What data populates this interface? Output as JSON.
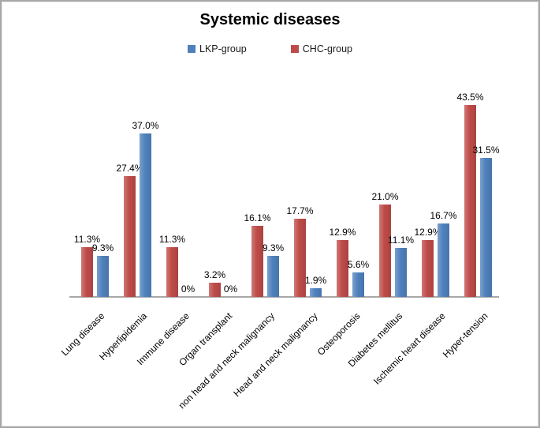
{
  "title": "Systemic diseases",
  "legend": [
    {
      "key": "lkp",
      "label": "LKP-group",
      "color": "#4F81BD"
    },
    {
      "key": "chc",
      "label": "CHC-group",
      "color": "#BE4B48"
    }
  ],
  "chart_data": {
    "type": "bar",
    "title": "Systemic diseases",
    "categories": [
      "Lung disease",
      "Hyperlipidemia",
      "Immune disease",
      "Organ transplant",
      "non head and neck malignancy",
      "Head and neck malignancy",
      "Osteoporosis",
      "Diabetes mellitus",
      "Ischemic heart disease",
      "Hyper-tension"
    ],
    "series": [
      {
        "name": "CHC-group",
        "key": "chc",
        "color": "#BE4B48",
        "values": [
          11.3,
          27.4,
          11.3,
          3.2,
          16.1,
          17.7,
          12.9,
          21.0,
          12.9,
          43.5
        ],
        "labels": [
          "11.3%",
          "27.4%",
          "11.3%",
          "3.2%",
          "16.1%",
          "17.7%",
          "12.9%",
          "21.0%",
          "12.9%",
          "43.5%"
        ]
      },
      {
        "name": "LKP-group",
        "key": "lkp",
        "color": "#4F81BD",
        "values": [
          9.3,
          37.0,
          0,
          0,
          9.3,
          1.9,
          5.6,
          11.1,
          16.7,
          31.5
        ],
        "labels": [
          "9.3%",
          "37.0%",
          "0%",
          "0%",
          "9.3%",
          "1.9%",
          "5.6%",
          "11.1%",
          "16.7%",
          "31.5%"
        ]
      }
    ],
    "ylim": [
      0,
      45
    ],
    "unit": "%",
    "grid": false,
    "data_labels": "outside-end",
    "legend_position": "top",
    "category_label_rotation_deg": 45,
    "bar_order_per_category": [
      "CHC-group",
      "LKP-group"
    ]
  }
}
